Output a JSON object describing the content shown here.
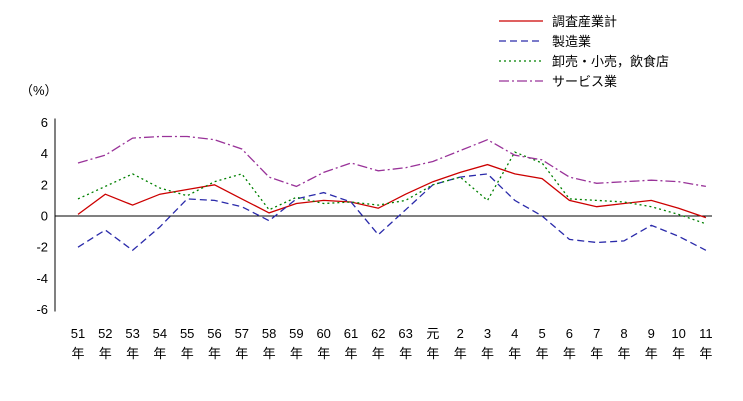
{
  "unit_label": "（%）",
  "chart_data": {
    "type": "line",
    "title": "",
    "xlabel": "",
    "ylabel": "（%）",
    "ylim": [
      -6,
      6
    ],
    "yticks": [
      6,
      4,
      2,
      0,
      -2,
      -4,
      -6
    ],
    "grid": false,
    "legend_position": "top-right",
    "categories": [
      "51",
      "52",
      "53",
      "54",
      "55",
      "56",
      "57",
      "58",
      "59",
      "60",
      "61",
      "62",
      "63",
      "元",
      "2",
      "3",
      "4",
      "5",
      "6",
      "7",
      "8",
      "9",
      "10",
      "11"
    ],
    "category_suffix": "年",
    "series": [
      {
        "name": "調査産業計",
        "color": "#cc0000",
        "style": "solid",
        "values": [
          0.1,
          1.4,
          0.7,
          1.4,
          1.7,
          2.0,
          1.1,
          0.2,
          0.8,
          1.0,
          0.9,
          0.5,
          1.4,
          2.2,
          2.8,
          3.3,
          2.7,
          2.4,
          1.0,
          0.6,
          0.8,
          1.0,
          0.5,
          -0.1
        ]
      },
      {
        "name": "製造業",
        "color": "#2a2aaa",
        "style": "dashed",
        "values": [
          -2.0,
          -0.9,
          -2.2,
          -0.7,
          1.1,
          1.0,
          0.6,
          -0.3,
          1.1,
          1.5,
          0.9,
          -1.2,
          0.4,
          2.0,
          2.5,
          2.7,
          1.0,
          0.0,
          -1.5,
          -1.7,
          -1.6,
          -0.6,
          -1.3,
          -2.2
        ]
      },
      {
        "name": "卸売・小売，飲食店",
        "color": "#008000",
        "style": "dotted",
        "values": [
          1.1,
          1.9,
          2.7,
          1.8,
          1.3,
          2.2,
          2.7,
          0.4,
          1.2,
          0.8,
          0.9,
          0.7,
          1.0,
          2.0,
          2.5,
          1.0,
          4.1,
          3.4,
          1.1,
          1.0,
          0.9,
          0.6,
          0.1,
          -0.5
        ]
      },
      {
        "name": "サービス業",
        "color": "#993399",
        "style": "dashdot",
        "values": [
          3.4,
          3.9,
          5.0,
          5.1,
          5.1,
          4.9,
          4.3,
          2.5,
          1.9,
          2.8,
          3.4,
          2.9,
          3.1,
          3.5,
          4.2,
          4.9,
          3.9,
          3.6,
          2.5,
          2.1,
          2.2,
          2.3,
          2.2,
          1.9
        ]
      }
    ]
  }
}
